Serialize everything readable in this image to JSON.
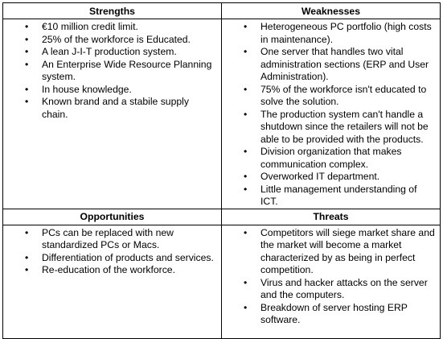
{
  "swot": [
    {
      "title": "Strengths",
      "items": [
        "€10 million credit limit.",
        "25% of the workforce is Educated.",
        "A lean J-I-T production system.",
        "An Enterprise Wide Resource Planning system.",
        "In house knowledge.",
        "Known brand and a stabile supply chain."
      ]
    },
    {
      "title": "Weaknesses",
      "items": [
        "Heterogeneous PC portfolio (high costs in maintenance).",
        "One server that handles two vital administration sections (ERP and User Administration).",
        "75% of the workforce isn't educated to solve the solution.",
        "The production system can't handle a shutdown since the retailers will not be able to be provided with the products.",
        "Division organization that makes communication complex.",
        "Overworked IT department.",
        "Little management understanding of ICT."
      ]
    },
    {
      "title": "Opportunities",
      "items": [
        "PCs can be replaced with new standardized PCs or Macs.",
        "Differentiation of products and services.",
        "Re-education of the workforce."
      ]
    },
    {
      "title": "Threats",
      "items": [
        "Competitors will siege market share and the market will become a market characterized by as being in perfect competition.",
        "Virus and hacker attacks on the server and the computers.",
        "Breakdown of server hosting ERP software."
      ]
    }
  ]
}
